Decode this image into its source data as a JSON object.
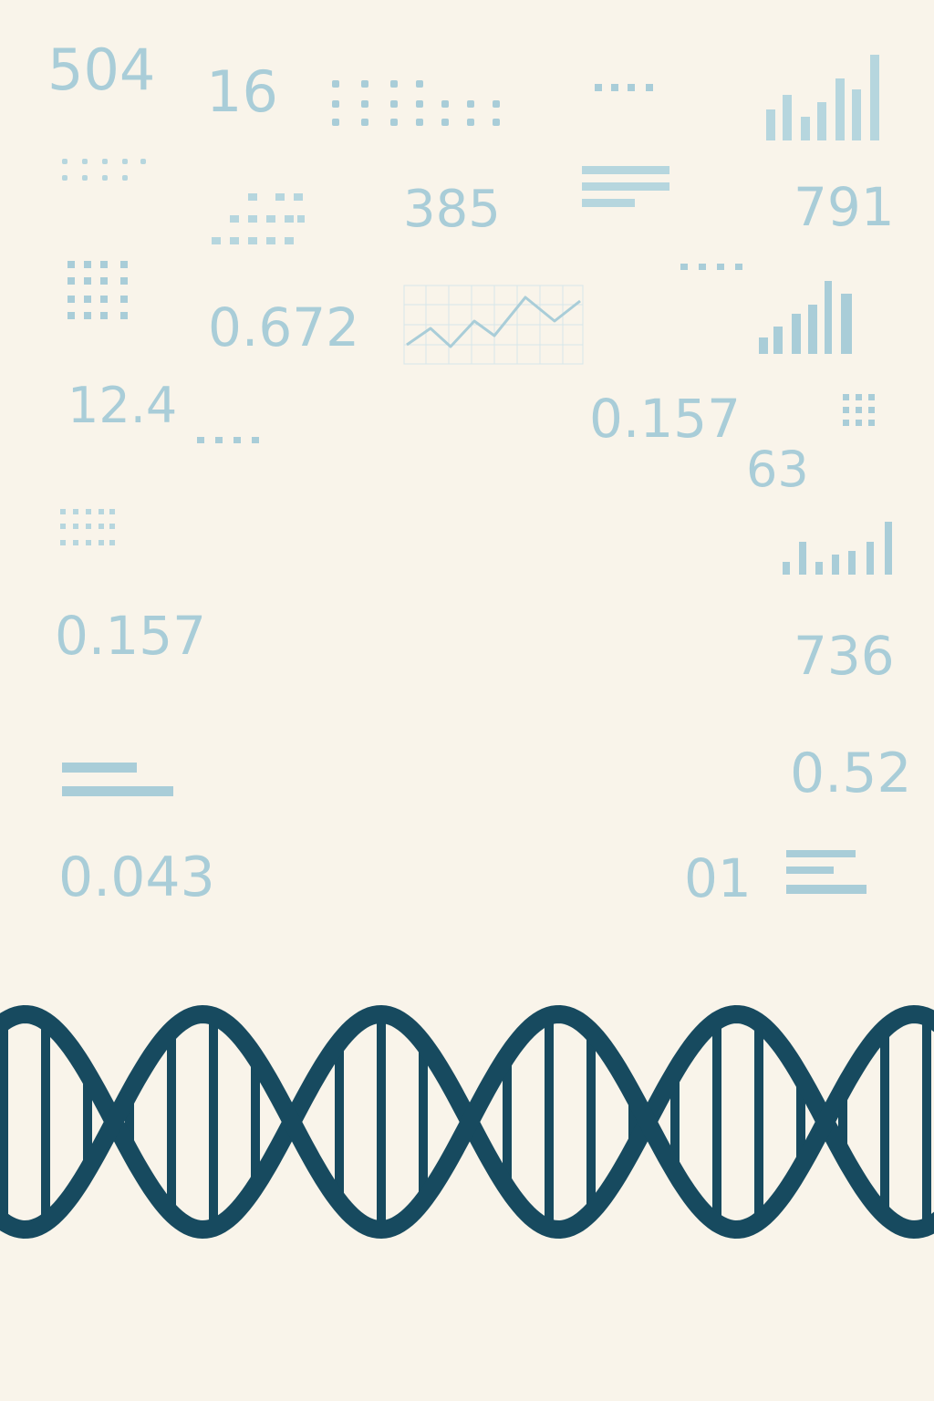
{
  "colors": {
    "background": "#f9f4ea",
    "number_text": "#a9cdd8",
    "decoration_light": "#b6d6de",
    "decoration_mid": "#9cc3cf",
    "helix": "#174a5f"
  },
  "numbers": {
    "n504": "504",
    "n16": "16",
    "n385": "385",
    "n791": "791",
    "n0672": "0.672",
    "n124": "12.4",
    "n0157_center": "0.157",
    "n63": "63",
    "n0157_left": "0.157",
    "n736": "736",
    "n052": "0.52",
    "n0043": "0.043",
    "n01": "01"
  },
  "icons": {
    "helix": "dna-double-helix",
    "bars": "bar-chart-icon",
    "line": "line-chart-icon",
    "dots": "dot-matrix-icon",
    "lines": "text-lines-icon"
  }
}
